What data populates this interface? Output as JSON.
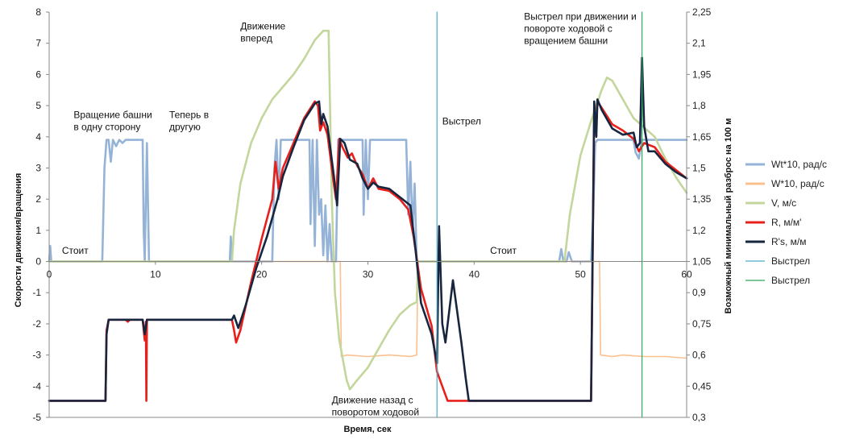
{
  "chart_data": {
    "type": "line",
    "xlabel": "Время, сек",
    "ylabel": "Скорости движения/вращения",
    "y2label": "Возможный минимальный разброс на 100 м",
    "xlim": [
      0,
      60
    ],
    "ylim": [
      -5,
      8
    ],
    "y2lim": [
      0.3,
      2.25
    ],
    "x_ticks": [
      "0",
      "10",
      "20",
      "30",
      "40",
      "50",
      "60"
    ],
    "y_ticks": [
      "-5",
      "-4",
      "-3",
      "-2",
      "-1",
      "0",
      "1",
      "2",
      "3",
      "4",
      "5",
      "6",
      "7",
      "8"
    ],
    "y2_ticks": [
      "0,3",
      "0,45",
      "0,6",
      "0,75",
      "0,9",
      "1,05",
      "1,2",
      "1,35",
      "1,5",
      "1,65",
      "1,8",
      "1,95",
      "2,1",
      "2,25"
    ],
    "grid": "none",
    "legend_position": "right",
    "series": [
      {
        "name": "Wt*10, рад/с",
        "axis": "left",
        "color": "#95b3d7",
        "points": [
          [
            0,
            0
          ],
          [
            0.1,
            0.5
          ],
          [
            0.2,
            0
          ],
          [
            5.0,
            0
          ],
          [
            5.2,
            3.0
          ],
          [
            5.4,
            3.9
          ],
          [
            5.6,
            3.9
          ],
          [
            5.8,
            3.2
          ],
          [
            6.0,
            3.9
          ],
          [
            6.3,
            3.7
          ],
          [
            6.6,
            3.9
          ],
          [
            6.9,
            3.8
          ],
          [
            7.2,
            3.9
          ],
          [
            8.8,
            3.9
          ],
          [
            8.9,
            1.0
          ],
          [
            9.0,
            0
          ],
          [
            9.2,
            3.8
          ],
          [
            9.4,
            0
          ],
          [
            9.6,
            0
          ],
          [
            17.0,
            0
          ],
          [
            17.1,
            0.8
          ],
          [
            17.2,
            0
          ],
          [
            21.0,
            0
          ],
          [
            21.2,
            3.0
          ],
          [
            21.4,
            3.9
          ],
          [
            21.6,
            2.0
          ],
          [
            21.8,
            3.9
          ],
          [
            24.5,
            3.9
          ],
          [
            24.6,
            1.2
          ],
          [
            24.8,
            3.9
          ],
          [
            25.0,
            0.5
          ],
          [
            25.2,
            3.9
          ],
          [
            25.4,
            1.5
          ],
          [
            25.6,
            2.0
          ],
          [
            25.8,
            0.2
          ],
          [
            26.0,
            1.8
          ],
          [
            26.2,
            0
          ],
          [
            26.4,
            1.2
          ],
          [
            26.6,
            0
          ],
          [
            27.0,
            0
          ],
          [
            27.2,
            3.9
          ],
          [
            29.5,
            3.9
          ],
          [
            29.6,
            1.5
          ],
          [
            29.8,
            3.9
          ],
          [
            30.0,
            2.0
          ],
          [
            30.2,
            3.9
          ],
          [
            33.6,
            3.9
          ],
          [
            33.8,
            1.5
          ],
          [
            34.0,
            3.2
          ],
          [
            34.2,
            1.0
          ],
          [
            34.4,
            2.5
          ],
          [
            34.6,
            0
          ],
          [
            48.0,
            0
          ],
          [
            48.2,
            0.4
          ],
          [
            48.4,
            0
          ],
          [
            48.7,
            0
          ],
          [
            48.9,
            0.3
          ],
          [
            49.2,
            0
          ],
          [
            51.0,
            0
          ],
          [
            51.2,
            1.5
          ],
          [
            51.4,
            3.8
          ],
          [
            51.6,
            3.9
          ],
          [
            55.0,
            3.9
          ],
          [
            55.2,
            3.5
          ],
          [
            55.5,
            3.3
          ],
          [
            55.8,
            3.9
          ],
          [
            60,
            3.9
          ]
        ]
      },
      {
        "name": "W*10, рад/с",
        "axis": "left",
        "color": "#fac090",
        "points": [
          [
            0,
            0
          ],
          [
            27.4,
            0
          ],
          [
            27.5,
            -3.05
          ],
          [
            28,
            -3.0
          ],
          [
            30,
            -3.05
          ],
          [
            32,
            -3.0
          ],
          [
            34,
            -3.05
          ],
          [
            34.6,
            -3.0
          ],
          [
            34.7,
            0
          ],
          [
            51.8,
            0
          ],
          [
            51.9,
            -3.0
          ],
          [
            53,
            -3.05
          ],
          [
            54,
            -3.0
          ],
          [
            56,
            -3.05
          ],
          [
            58,
            -3.05
          ],
          [
            60,
            -3.1
          ]
        ]
      },
      {
        "name": "V, м/с",
        "axis": "left",
        "color": "#c3d69b",
        "points": [
          [
            0,
            0
          ],
          [
            17.2,
            0
          ],
          [
            17.4,
            1.0
          ],
          [
            18,
            2.5
          ],
          [
            19,
            3.8
          ],
          [
            20,
            4.6
          ],
          [
            21,
            5.2
          ],
          [
            22,
            5.6
          ],
          [
            23,
            6.0
          ],
          [
            24,
            6.5
          ],
          [
            25,
            7.1
          ],
          [
            25.8,
            7.4
          ],
          [
            26.3,
            7.4
          ],
          [
            26.6,
            2.0
          ],
          [
            26.9,
            -1.0
          ],
          [
            27.3,
            -2.5
          ],
          [
            28.0,
            -3.8
          ],
          [
            28.3,
            -4.1
          ],
          [
            29,
            -3.8
          ],
          [
            30,
            -3.4
          ],
          [
            31,
            -2.8
          ],
          [
            32,
            -2.2
          ],
          [
            33,
            -1.7
          ],
          [
            34,
            -1.4
          ],
          [
            34.6,
            -1.3
          ],
          [
            34.7,
            0
          ],
          [
            48.5,
            0
          ],
          [
            49,
            1.5
          ],
          [
            50,
            3.4
          ],
          [
            51,
            4.5
          ],
          [
            52,
            5.5
          ],
          [
            52.5,
            5.9
          ],
          [
            53,
            5.8
          ],
          [
            54,
            5.2
          ],
          [
            55,
            4.6
          ],
          [
            56,
            4.3
          ],
          [
            57,
            4.0
          ],
          [
            58,
            3.3
          ],
          [
            59,
            2.7
          ],
          [
            60,
            2.2
          ]
        ]
      },
      {
        "name": "R, м/м'",
        "axis": "right",
        "color": "#e8201c",
        "points": [
          [
            0,
            0.38
          ],
          [
            5.3,
            0.38
          ],
          [
            5.4,
            0.72
          ],
          [
            5.6,
            0.77
          ],
          [
            7.2,
            0.77
          ],
          [
            7.4,
            0.76
          ],
          [
            7.6,
            0.77
          ],
          [
            8.8,
            0.77
          ],
          [
            9.0,
            0.67
          ],
          [
            9.1,
            0.76
          ],
          [
            9.15,
            0.38
          ],
          [
            9.2,
            0.77
          ],
          [
            17.2,
            0.77
          ],
          [
            17.4,
            0.72
          ],
          [
            17.6,
            0.66
          ],
          [
            18,
            0.72
          ],
          [
            19,
            0.95
          ],
          [
            20,
            1.16
          ],
          [
            21,
            1.35
          ],
          [
            21.3,
            1.53
          ],
          [
            21.6,
            1.4
          ],
          [
            22,
            1.5
          ],
          [
            23,
            1.62
          ],
          [
            24,
            1.74
          ],
          [
            25,
            1.82
          ],
          [
            25.3,
            1.8
          ],
          [
            25.5,
            1.68
          ],
          [
            25.8,
            1.72
          ],
          [
            26.2,
            1.66
          ],
          [
            26.8,
            1.42
          ],
          [
            27.0,
            1.35
          ],
          [
            27.3,
            1.64
          ],
          [
            27.6,
            1.6
          ],
          [
            28.1,
            1.55
          ],
          [
            28.5,
            1.57
          ],
          [
            29,
            1.51
          ],
          [
            29.5,
            1.47
          ],
          [
            30,
            1.4
          ],
          [
            30.5,
            1.45
          ],
          [
            31,
            1.4
          ],
          [
            32,
            1.39
          ],
          [
            33,
            1.35
          ],
          [
            33.8,
            1.3
          ],
          [
            34.3,
            1.17
          ],
          [
            35,
            0.92
          ],
          [
            36,
            0.74
          ],
          [
            36.5,
            0.52
          ],
          [
            37.5,
            0.38
          ],
          [
            51,
            0.38
          ],
          [
            51.3,
            1.75
          ],
          [
            51.5,
            1.7
          ],
          [
            51.6,
            1.82
          ],
          [
            52,
            1.79
          ],
          [
            53,
            1.71
          ],
          [
            54,
            1.68
          ],
          [
            55,
            1.64
          ],
          [
            55.5,
            1.58
          ],
          [
            56,
            1.62
          ],
          [
            57,
            1.6
          ],
          [
            58,
            1.53
          ],
          [
            59,
            1.49
          ],
          [
            60,
            1.45
          ]
        ]
      },
      {
        "name": "R's, м/м",
        "axis": "right",
        "color": "#17253f",
        "points": [
          [
            0,
            0.38
          ],
          [
            5.3,
            0.38
          ],
          [
            5.4,
            0.7
          ],
          [
            5.6,
            0.77
          ],
          [
            7,
            0.77
          ],
          [
            8.8,
            0.77
          ],
          [
            9.0,
            0.7
          ],
          [
            9.2,
            0.77
          ],
          [
            17.2,
            0.77
          ],
          [
            17.4,
            0.79
          ],
          [
            17.8,
            0.73
          ],
          [
            18.5,
            0.84
          ],
          [
            19.5,
            1.02
          ],
          [
            20.5,
            1.17
          ],
          [
            21.5,
            1.35
          ],
          [
            22,
            1.46
          ],
          [
            23,
            1.6
          ],
          [
            24,
            1.73
          ],
          [
            25,
            1.81
          ],
          [
            25.4,
            1.82
          ],
          [
            25.6,
            1.71
          ],
          [
            25.8,
            1.76
          ],
          [
            26.2,
            1.7
          ],
          [
            26.8,
            1.46
          ],
          [
            27.1,
            1.32
          ],
          [
            27.4,
            1.64
          ],
          [
            27.8,
            1.62
          ],
          [
            28.3,
            1.54
          ],
          [
            29,
            1.52
          ],
          [
            29.5,
            1.45
          ],
          [
            30,
            1.4
          ],
          [
            30.5,
            1.43
          ],
          [
            31,
            1.41
          ],
          [
            32,
            1.4
          ],
          [
            33,
            1.36
          ],
          [
            34,
            1.32
          ],
          [
            34.5,
            1.1
          ],
          [
            35,
            0.85
          ],
          [
            36,
            0.7
          ],
          [
            36.5,
            0.56
          ],
          [
            36.7,
            1.22
          ],
          [
            37,
            0.75
          ],
          [
            37.3,
            0.66
          ],
          [
            38,
            0.96
          ],
          [
            38.8,
            0.66
          ],
          [
            39.2,
            0.49
          ],
          [
            39.5,
            0.38
          ],
          [
            51,
            0.38
          ],
          [
            51.3,
            1.82
          ],
          [
            51.5,
            1.65
          ],
          [
            51.6,
            1.83
          ],
          [
            52,
            1.78
          ],
          [
            53,
            1.69
          ],
          [
            54,
            1.66
          ],
          [
            55,
            1.67
          ],
          [
            55.3,
            1.6
          ],
          [
            55.6,
            1.62
          ],
          [
            55.8,
            2.03
          ],
          [
            56,
            1.7
          ],
          [
            56.4,
            1.58
          ],
          [
            57,
            1.58
          ],
          [
            58,
            1.52
          ],
          [
            59,
            1.48
          ],
          [
            60,
            1.45
          ]
        ]
      },
      {
        "name": "Выстрел",
        "axis": "left",
        "color": "#4bacc6",
        "points": [
          [
            36.5,
            -5
          ],
          [
            36.5,
            8
          ]
        ]
      },
      {
        "name": "Выстрел",
        "axis": "left",
        "color": "#2ea85c",
        "points": [
          [
            55.8,
            -5
          ],
          [
            55.8,
            8
          ]
        ]
      }
    ],
    "annotations": [
      {
        "text": [
          "Вращение башни",
          "в одну сторону"
        ],
        "x": 2.3,
        "y": 4.6
      },
      {
        "text": [
          "Теперь в",
          "другую"
        ],
        "x": 11.3,
        "y": 4.6
      },
      {
        "text": [
          "Движение",
          "вперед"
        ],
        "x": 18.0,
        "y": 7.45
      },
      {
        "text": [
          "Выстрел"
        ],
        "x": 37.0,
        "y": 4.4
      },
      {
        "text": [
          "Выстрел при движении и",
          "повороте ходовой с",
          "вращением башни"
        ],
        "x": 44.7,
        "y": 7.75
      },
      {
        "text": [
          "Стоит"
        ],
        "x": 1.2,
        "y": 0.25
      },
      {
        "text": [
          "Стоит"
        ],
        "x": 41.5,
        "y": 0.25
      },
      {
        "text": [
          "Движение назад с",
          "поворотом ходовой"
        ],
        "x": 26.6,
        "y": -4.55
      }
    ]
  }
}
